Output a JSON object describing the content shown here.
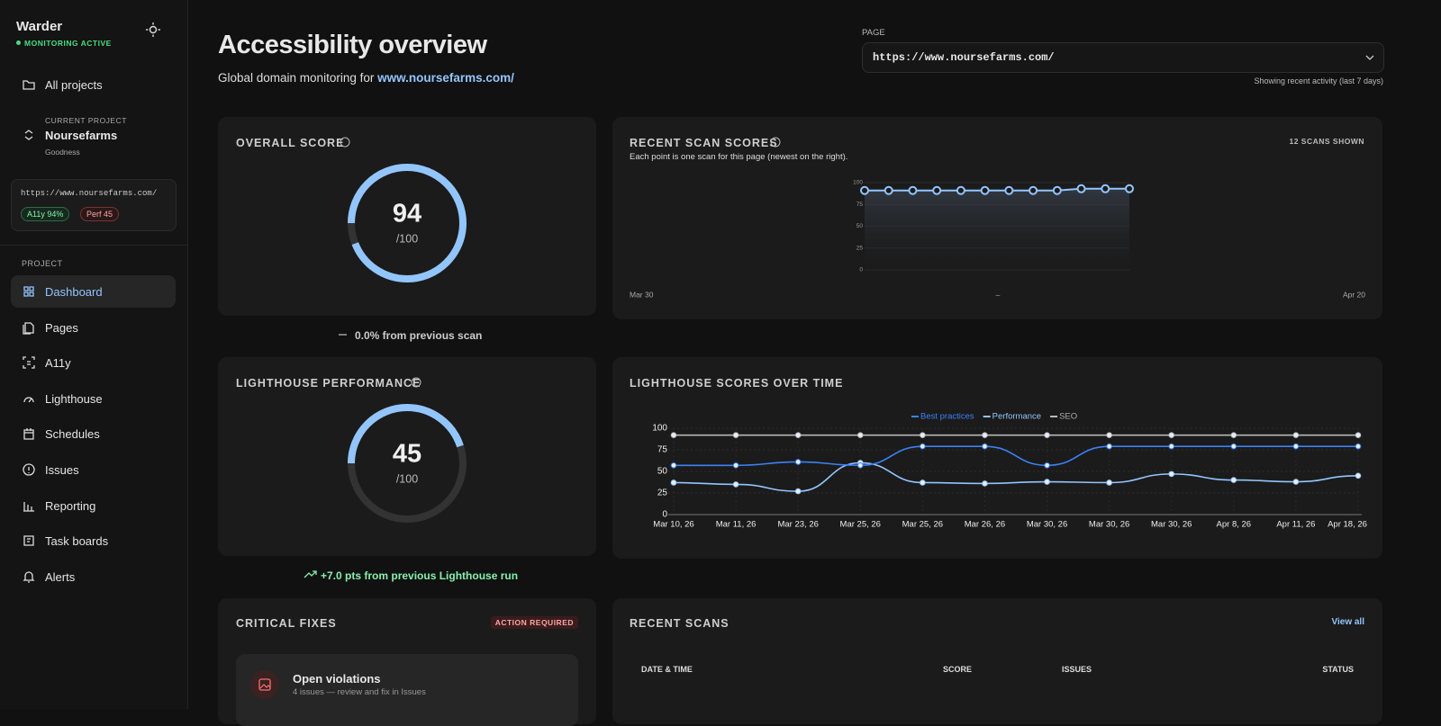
{
  "sidebar": {
    "brand": "Warder",
    "status": "MONITORING ACTIVE",
    "all_projects": "All projects",
    "current_project_label": "CURRENT PROJECT",
    "project_name": "Noursefarms",
    "project_org": "Goodness",
    "project_url": "https://www.noursefarms.com/",
    "badges": [
      "A11y 94%",
      "Perf 45"
    ],
    "section": "PROJECT",
    "nav": [
      "Dashboard",
      "Pages",
      "A11y",
      "Lighthouse",
      "Schedules",
      "Issues",
      "Reporting",
      "Task boards",
      "Alerts"
    ]
  },
  "header": {
    "title": "Accessibility overview",
    "subtitle": "Global domain monitoring for",
    "subtitle_link": "www.noursefarms.com/",
    "page_label": "PAGE",
    "page_select": "https://www.noursefarms.com/",
    "activity_note": "Showing recent activity (last 7 days)"
  },
  "overall": {
    "title": "OVERALL SCORE",
    "score": 94,
    "max": {
      "value": 100,
      "label": "/100"
    },
    "change": "0.0% from previous scan"
  },
  "performance": {
    "title": "LIGHTHOUSE PERFORMANCE",
    "score": 45,
    "max": {
      "value": 100,
      "label": "/100"
    },
    "change": "+7.0 pts from previous Lighthouse run"
  },
  "recent_scan_chart": {
    "type": "line",
    "title": "RECENT SCAN SCORES",
    "count_label": "12 SCANS SHOWN",
    "subtitle": "Each point is one scan for this page (newest on the right).",
    "values": [
      91,
      91,
      91,
      91,
      91,
      91,
      91,
      91,
      91,
      93,
      93,
      93
    ],
    "color": "#93c5fd",
    "ylim": [
      0,
      100
    ],
    "yticks": [
      0,
      25,
      50,
      75,
      100
    ],
    "x_labels": [
      "Mar 30",
      "–",
      "Apr 20"
    ]
  },
  "lighthouse_chart": {
    "type": "line",
    "title": "LIGHTHOUSE SCORES OVER TIME",
    "categories": [
      "Mar 10, 26",
      "Mar 11, 26",
      "Mar 23, 26",
      "Mar 25, 26",
      "Mar 25, 26",
      "Mar 26, 26",
      "Mar 30, 26",
      "Mar 30, 26",
      "Mar 30, 26",
      "Apr 8, 26",
      "Apr 11, 26",
      "Apr 18, 26"
    ],
    "series": [
      {
        "name": "Best practices",
        "color": "#3b82f6",
        "values": [
          57,
          57,
          61,
          57,
          79,
          79,
          57,
          79,
          79,
          79,
          79,
          79
        ]
      },
      {
        "name": "Performance",
        "color": "#93c5fd",
        "values": [
          37,
          35,
          27,
          60,
          37,
          36,
          38,
          37,
          47,
          40,
          38,
          45
        ]
      },
      {
        "name": "SEO",
        "color": "#b8b8b8",
        "values": [
          92,
          92,
          92,
          92,
          92,
          92,
          92,
          92,
          92,
          92,
          92,
          92
        ]
      }
    ],
    "ylim": [
      0,
      100
    ],
    "yticks": [
      0,
      25,
      50,
      75,
      100
    ],
    "grid": true
  },
  "critical": {
    "title": "CRITICAL FIXES",
    "badge": "ACTION REQUIRED",
    "item_title": "Open violations",
    "item_sub": "4 issues — review and fix in Issues"
  },
  "recent_scans": {
    "title": "RECENT SCANS",
    "link": "View all",
    "columns": [
      "DATE & TIME",
      "SCORE",
      "ISSUES",
      "STATUS"
    ]
  }
}
